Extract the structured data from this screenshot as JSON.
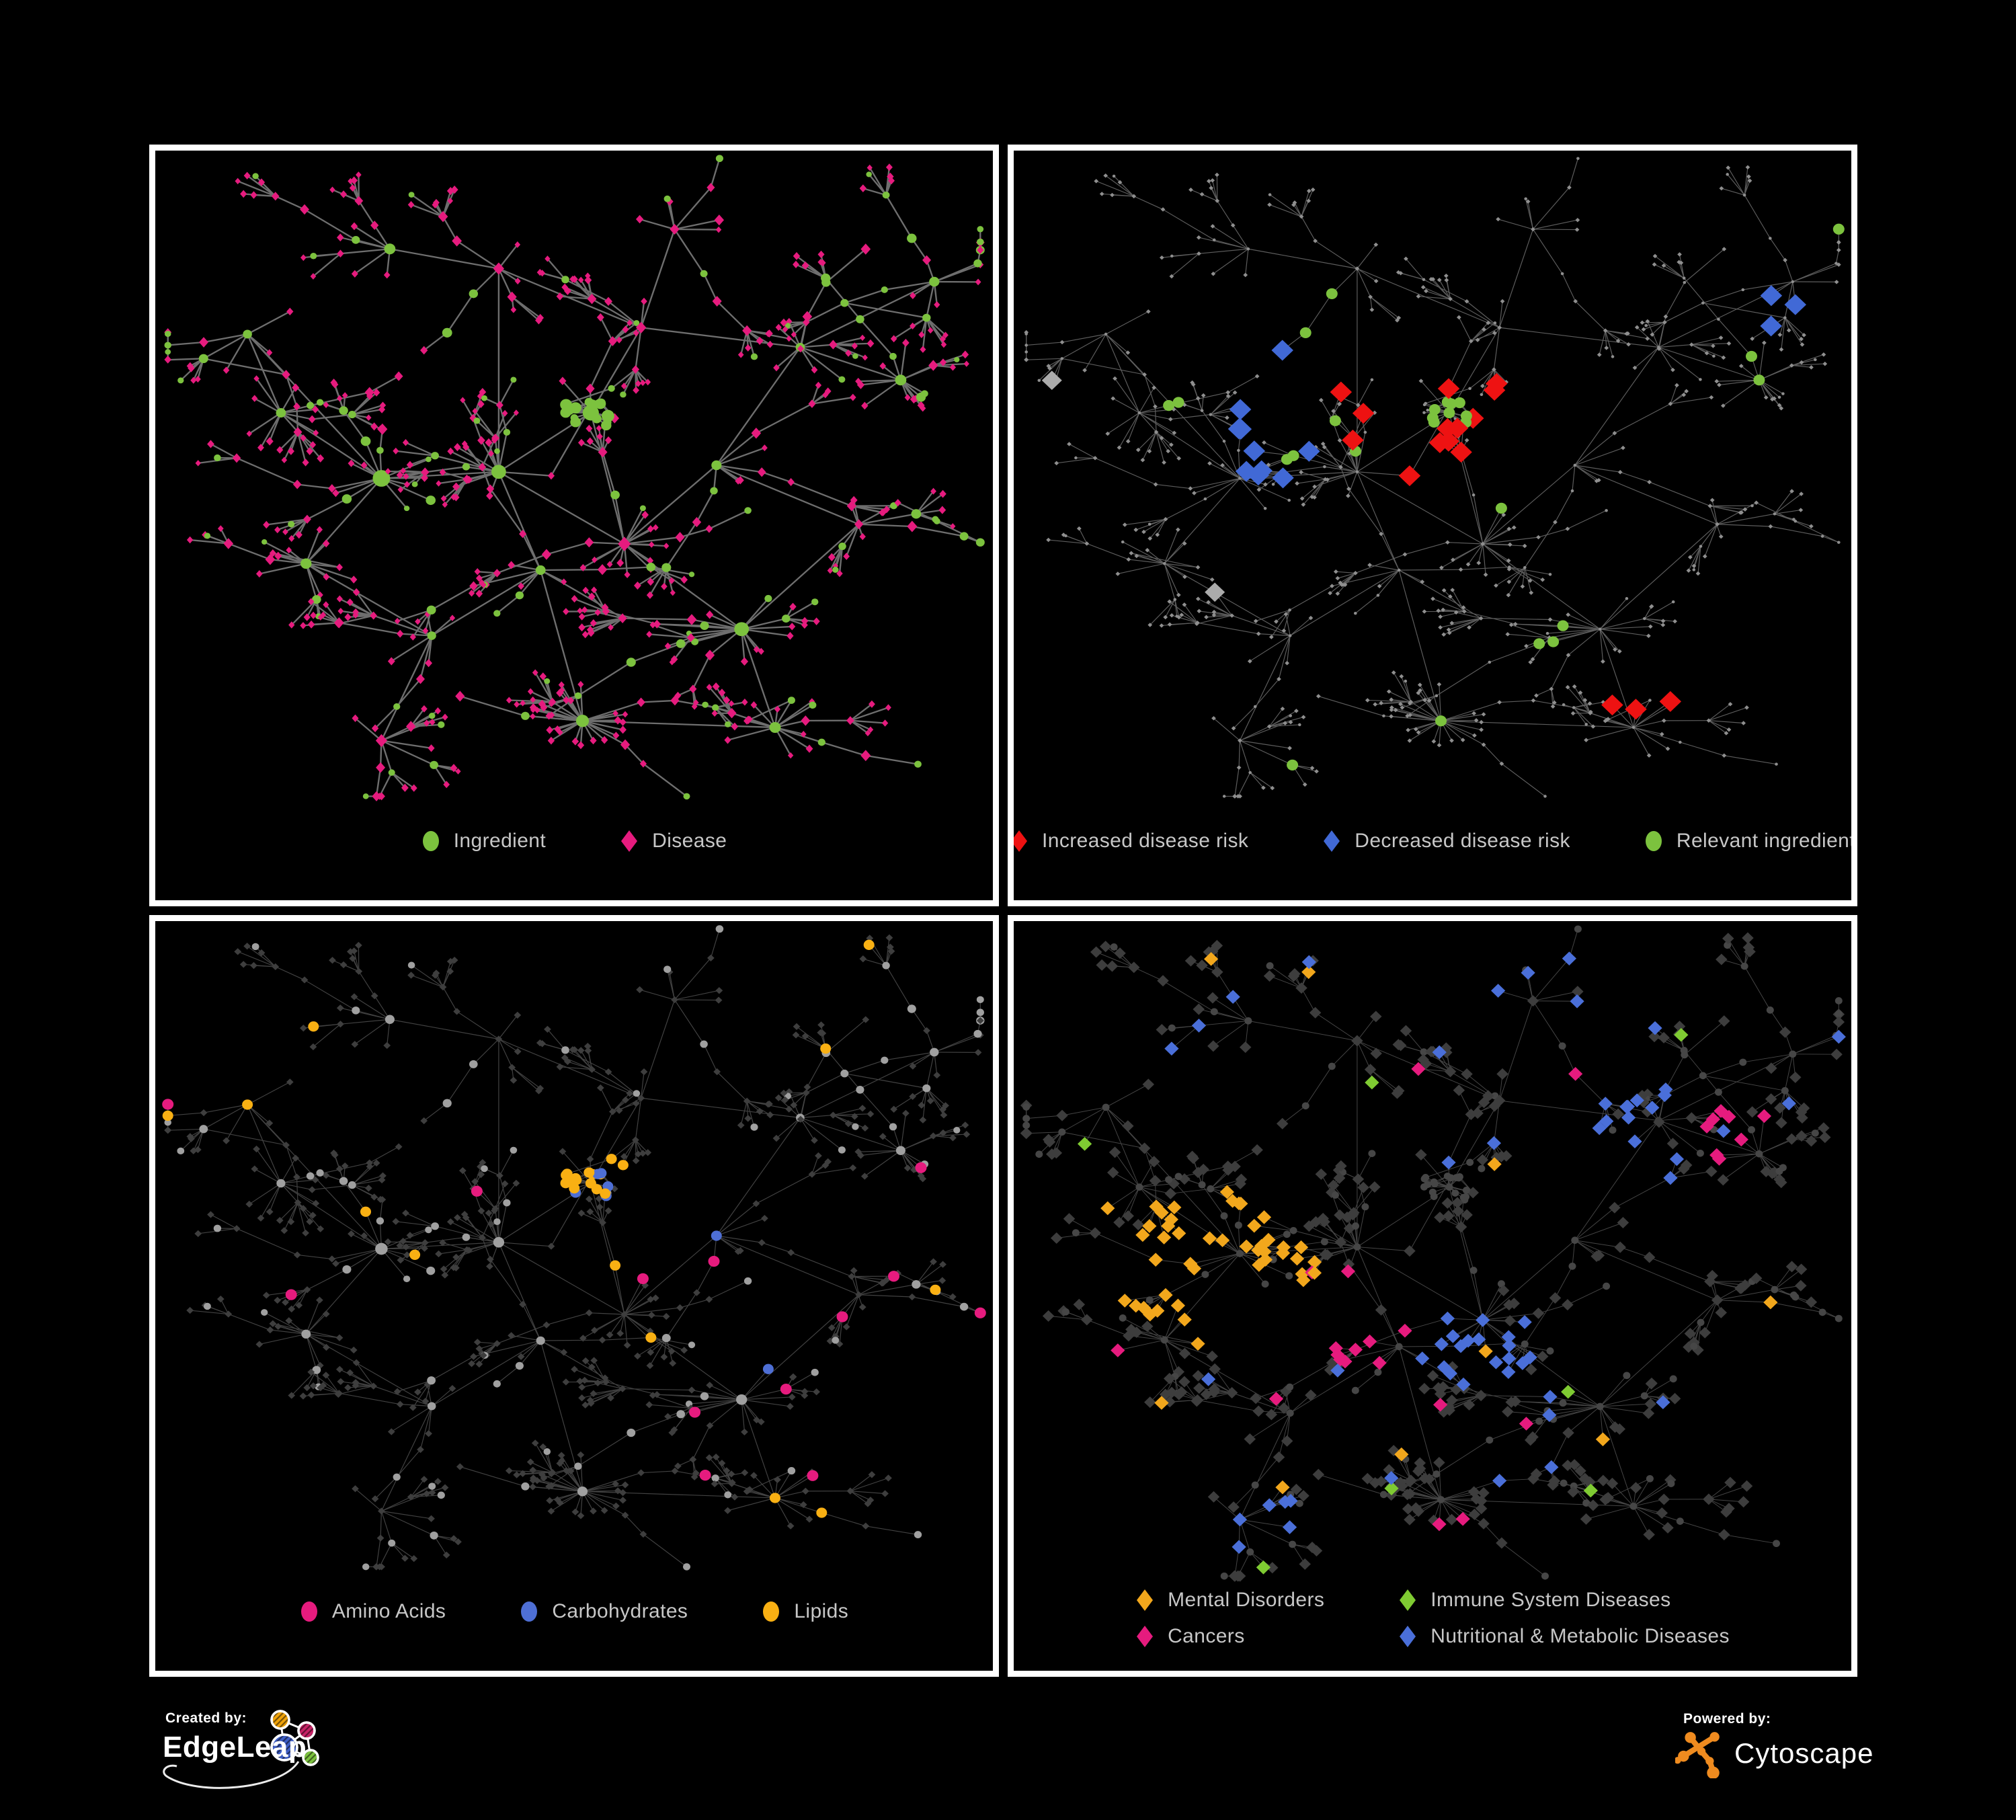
{
  "page": {
    "background": "#000000",
    "panel_border": "#ffffff",
    "legend_text_color": "#C7C7C7"
  },
  "node_semantics": {
    "circle": "Ingredient",
    "diamond": "Disease"
  },
  "footer": {
    "created": {
      "label": "Created by:",
      "brand": "EdgeLeap"
    },
    "powered": {
      "label": "Powered by:",
      "brand": "Cytoscape"
    },
    "edgeleap_colors": {
      "orange": "#F0A30A",
      "magenta": "#C72366",
      "blue": "#3E5EC6",
      "green": "#7CC23E"
    },
    "cytoscape_color": "#EF8B1F"
  },
  "network": {
    "seed": 11,
    "crosslinks": 26,
    "hubs": [
      [
        0.52,
        0.4,
        "knot"
      ],
      [
        0.27,
        0.5,
        "big"
      ],
      [
        0.41,
        0.49,
        "big"
      ],
      [
        0.56,
        0.6,
        "star"
      ],
      [
        0.51,
        0.87,
        "fan20"
      ],
      [
        0.7,
        0.73,
        "big"
      ],
      [
        0.77,
        0.3,
        "mid"
      ],
      [
        0.89,
        0.35,
        "fan"
      ],
      [
        0.62,
        0.12,
        "mid"
      ],
      [
        0.41,
        0.18,
        "mid"
      ],
      [
        0.28,
        0.15,
        "mid"
      ],
      [
        0.15,
        0.4,
        "fan"
      ],
      [
        0.18,
        0.63,
        "fan"
      ],
      [
        0.33,
        0.74,
        "mid"
      ],
      [
        0.27,
        0.9,
        "chain"
      ],
      [
        0.67,
        0.48,
        "mid"
      ],
      [
        0.58,
        0.27,
        "mid"
      ],
      [
        0.11,
        0.28,
        "chain"
      ],
      [
        0.84,
        0.57,
        "mid"
      ],
      [
        0.46,
        0.64,
        "mid"
      ],
      [
        0.74,
        0.88,
        "fan"
      ],
      [
        0.93,
        0.2,
        "chain"
      ]
    ],
    "backbone": [
      [
        0,
        2
      ],
      [
        1,
        2
      ],
      [
        2,
        3
      ],
      [
        0,
        3
      ],
      [
        3,
        5
      ],
      [
        2,
        19
      ],
      [
        19,
        4
      ],
      [
        3,
        15
      ],
      [
        15,
        6
      ],
      [
        6,
        7
      ],
      [
        6,
        21
      ],
      [
        0,
        16
      ],
      [
        16,
        8
      ],
      [
        2,
        9
      ],
      [
        9,
        10
      ],
      [
        1,
        11
      ],
      [
        1,
        12
      ],
      [
        12,
        13
      ],
      [
        13,
        14
      ],
      [
        15,
        18
      ],
      [
        18,
        5
      ],
      [
        5,
        20
      ],
      [
        19,
        13
      ],
      [
        16,
        6
      ],
      [
        1,
        17
      ],
      [
        4,
        20
      ],
      [
        9,
        16
      ],
      [
        11,
        17
      ]
    ]
  },
  "panels": [
    {
      "id": "ingredient-disease",
      "legend": {
        "columns": 1,
        "items": [
          {
            "shape": "circle",
            "color": "#7CC23E",
            "label": "Ingredient"
          },
          {
            "shape": "diamond",
            "color": "#E61B7E",
            "label": "Disease"
          }
        ]
      },
      "style": {
        "edge": {
          "color": "#7A7A7A",
          "width": 2.4,
          "opacity": 0.9
        },
        "ing": {
          "shape": "circle",
          "color": "#7CC23E",
          "k": 1.0,
          "add": 0.5,
          "max": 13
        },
        "dis": {
          "shape": "diamond",
          "color": "#E61B7E",
          "k": 0.95,
          "add": 0.5,
          "max": 9,
          "ratio": 0.85
        },
        "rules": []
      }
    },
    {
      "id": "disease-risk",
      "legend": {
        "columns": 1,
        "items": [
          {
            "shape": "diamond",
            "color": "#EE1212",
            "label": "Increased disease risk"
          },
          {
            "shape": "diamond",
            "color": "#4169D6",
            "label": "Decreased disease risk"
          },
          {
            "shape": "circle",
            "color": "#7CC23E",
            "label": "Relevant ingredient"
          }
        ]
      },
      "style": {
        "edge": {
          "color": "#6E6E6E",
          "width": 1.2,
          "opacity": 0.85
        },
        "ing": {
          "shape": "circle",
          "color": "#8F8F8F",
          "fixed": 2.3
        },
        "dis": {
          "shape": "diamond",
          "color": "#8F8F8F",
          "fixed": 2.7,
          "ratio": 1
        },
        "rules": [
          {
            "name": "increased-risk",
            "target": "dis",
            "shape": "diamond",
            "color": "#EE1212",
            "size": 13,
            "hotspots": [
              [
                0.52,
                0.44,
                0.12,
                0.5
              ],
              [
                0.44,
                0.37,
                0.05,
                0.4
              ],
              [
                0.68,
                0.33,
                0.04,
                0.5
              ],
              [
                0.74,
                0.82,
                0.05,
                0.9
              ],
              [
                0.87,
                0.44,
                0.035,
                0.7
              ]
            ],
            "scatter": 0.004
          },
          {
            "name": "decreased-risk",
            "target": "dis",
            "shape": "diamond",
            "color": "#4169D6",
            "size": 13,
            "hotspots": [
              [
                0.29,
                0.46,
                0.07,
                0.45
              ],
              [
                0.9,
                0.23,
                0.04,
                1.0
              ],
              [
                0.35,
                0.3,
                0.03,
                0.4
              ]
            ],
            "scatter": 0
          },
          {
            "name": "neutral",
            "target": "dis",
            "shape": "diamond",
            "color": "#ABABAB",
            "size": 12,
            "hotspots": [
              [
                0.28,
                0.36,
                0.05,
                0.4
              ],
              [
                0.5,
                0.47,
                0.06,
                0.22
              ],
              [
                0.6,
                0.46,
                0.04,
                0.3
              ],
              [
                0.25,
                0.6,
                0.035,
                0.4
              ],
              [
                0.63,
                0.6,
                0.03,
                0.4
              ]
            ],
            "scatter": 0.003
          },
          {
            "name": "relevant-ingredient",
            "target": "ing",
            "shape": "circle",
            "color": "#7CC23E",
            "size": 8.5,
            "hotspots": [
              [
                0.44,
                0.4,
                0.16,
                0.45
              ],
              [
                0.22,
                0.36,
                0.08,
                0.45
              ],
              [
                0.56,
                0.6,
                0.06,
                0.6
              ],
              [
                0.51,
                0.87,
                0.025,
                1.0
              ],
              [
                0.62,
                0.73,
                0.04,
                0.5
              ],
              [
                0.8,
                0.78,
                0.05,
                0.4
              ],
              [
                0.88,
                0.33,
                0.03,
                0.6
              ]
            ],
            "scatter": 0.05
          }
        ]
      }
    },
    {
      "id": "nutrient-classes",
      "legend": {
        "columns": 1,
        "items": [
          {
            "shape": "circle",
            "color": "#E61B7E",
            "label": "Amino Acids"
          },
          {
            "shape": "circle",
            "color": "#4E6FD5",
            "label": "Carbohydrates"
          },
          {
            "shape": "circle",
            "color": "#F9B013",
            "label": "Lipids"
          }
        ]
      },
      "style": {
        "edge": {
          "color": "#787878",
          "width": 1.2,
          "opacity": 0.55
        },
        "ing": {
          "shape": "circle",
          "color": "#A0A0A0",
          "k": 0.45,
          "add": 3.5,
          "max": 10
        },
        "dis": {
          "shape": "diamond",
          "color": "#3E3E3E",
          "fixed": 4.3,
          "ratio": 1
        },
        "rules": [
          {
            "name": "carbohydrates",
            "target": "ing",
            "shape": "circle",
            "color": "#4E6FD5",
            "size": 8,
            "hotspots": [
              [
                0.54,
                0.42,
                0.045,
                0.3
              ],
              [
                0.44,
                0.3,
                0.03,
                0.3
              ]
            ],
            "scatter": 0.03
          },
          {
            "name": "lipids",
            "target": "ing",
            "shape": "circle",
            "color": "#F9B013",
            "size": 8,
            "hotspots": [
              [
                0.52,
                0.4,
                0.08,
                0.95
              ],
              [
                0.45,
                0.28,
                0.08,
                0.55
              ],
              [
                0.5,
                0.52,
                0.06,
                0.45
              ],
              [
                0.57,
                0.62,
                0.045,
                0.8
              ]
            ],
            "scatter": 0.1
          },
          {
            "name": "amino-acids",
            "target": "ing",
            "shape": "circle",
            "color": "#E61B7E",
            "size": 8.5,
            "hotspots": [
              [
                0.72,
                0.66,
                0.07,
                0.5
              ],
              [
                0.3,
                0.8,
                0.05,
                0.35
              ]
            ],
            "scatter": 0.09
          }
        ]
      }
    },
    {
      "id": "disease-categories",
      "legend": {
        "columns": 2,
        "items": [
          {
            "shape": "diamond",
            "color": "#F2A71C",
            "label": "Mental Disorders"
          },
          {
            "shape": "diamond",
            "color": "#7FCB32",
            "label": "Immune System Diseases"
          },
          {
            "shape": "diamond",
            "color": "#E61B7E",
            "label": "Cancers"
          },
          {
            "shape": "diamond",
            "color": "#4A6FD9",
            "label": "Nutritional & Metabolic Diseases"
          }
        ]
      },
      "style": {
        "edge": {
          "color": "#8A8A8A",
          "width": 1.0,
          "opacity": 0.5
        },
        "ing": {
          "shape": "circle",
          "color": "#464646",
          "fixed": 5.5
        },
        "dis": {
          "shape": "diamond",
          "color": "#3D3D3D",
          "fixed": 7,
          "ratio": 1
        },
        "rules": [
          {
            "name": "mental-disorders",
            "target": "dis",
            "shape": "diamond",
            "color": "#F2A71C",
            "size": 8.5,
            "hotspots": [
              [
                0.24,
                0.52,
                0.12,
                0.9
              ],
              [
                0.3,
                0.45,
                0.06,
                0.5
              ],
              [
                0.36,
                0.2,
                0.04,
                0.35
              ],
              [
                0.15,
                0.75,
                0.04,
                0.3
              ]
            ],
            "scatter": 0.02
          },
          {
            "name": "cancers",
            "target": "dis",
            "shape": "diamond",
            "color": "#E61B7E",
            "size": 8.5,
            "hotspots": [
              [
                0.43,
                0.6,
                0.08,
                0.8
              ],
              [
                0.47,
                0.47,
                0.05,
                0.35
              ],
              [
                0.86,
                0.32,
                0.055,
                0.8
              ],
              [
                0.53,
                0.93,
                0.035,
                0.5
              ]
            ],
            "scatter": 0.015
          },
          {
            "name": "nutritional-metabolic",
            "target": "dis",
            "shape": "diamond",
            "color": "#4A6FD9",
            "size": 8.5,
            "hotspots": [
              [
                0.56,
                0.64,
                0.065,
                0.85
              ],
              [
                0.78,
                0.33,
                0.1,
                0.45
              ],
              [
                0.61,
                0.1,
                0.07,
                0.5
              ],
              [
                0.2,
                0.14,
                0.07,
                0.4
              ],
              [
                0.31,
                0.9,
                0.06,
                0.35
              ],
              [
                0.9,
                0.5,
                0.05,
                0.5
              ]
            ],
            "scatter": 0.05
          },
          {
            "name": "immune-system",
            "target": "dis",
            "shape": "diamond",
            "color": "#7FCB32",
            "size": 8.5,
            "hotspots": [],
            "scatter": 0.022
          }
        ]
      }
    }
  ]
}
